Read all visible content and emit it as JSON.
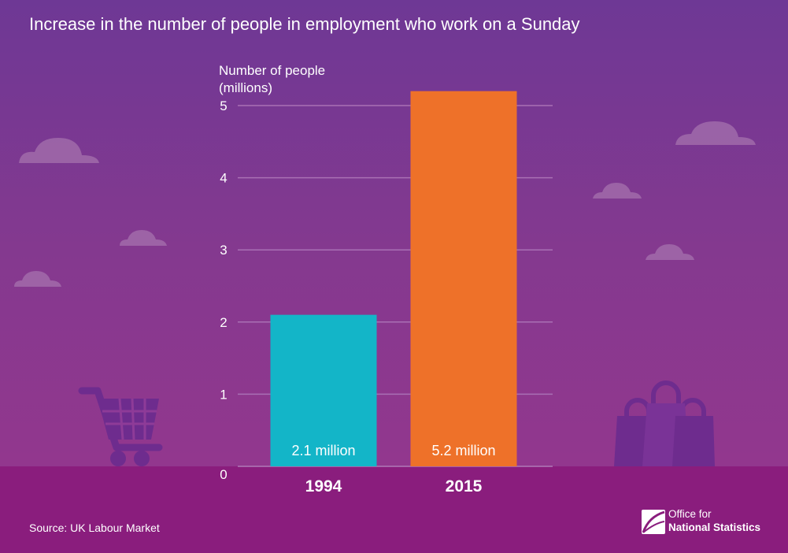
{
  "title": "Increase in the number of people in employment who work on a Sunday",
  "source": "Source: UK Labour Market",
  "logo": {
    "line1": "Office for",
    "line2": "National Statistics"
  },
  "colors": {
    "bar_1994": "#13b5c8",
    "bar_2015": "#ee7129",
    "grid": "#a970b4",
    "text": "#ffffff"
  },
  "icons": [
    "cloud-icon",
    "shopping-cart-icon",
    "shopping-bags-icon",
    "ons-logo-icon"
  ],
  "chart_data": {
    "type": "bar",
    "categories": [
      "1994",
      "2015"
    ],
    "values": [
      2.1,
      5.2
    ],
    "data_labels": [
      "2.1 million",
      "5.2 million"
    ],
    "ylabel_lines": [
      "Number of people",
      "(millions)"
    ],
    "yticks": [
      0,
      1,
      2,
      3,
      4,
      5
    ],
    "ylim": [
      0,
      5.2
    ],
    "grid": true
  }
}
